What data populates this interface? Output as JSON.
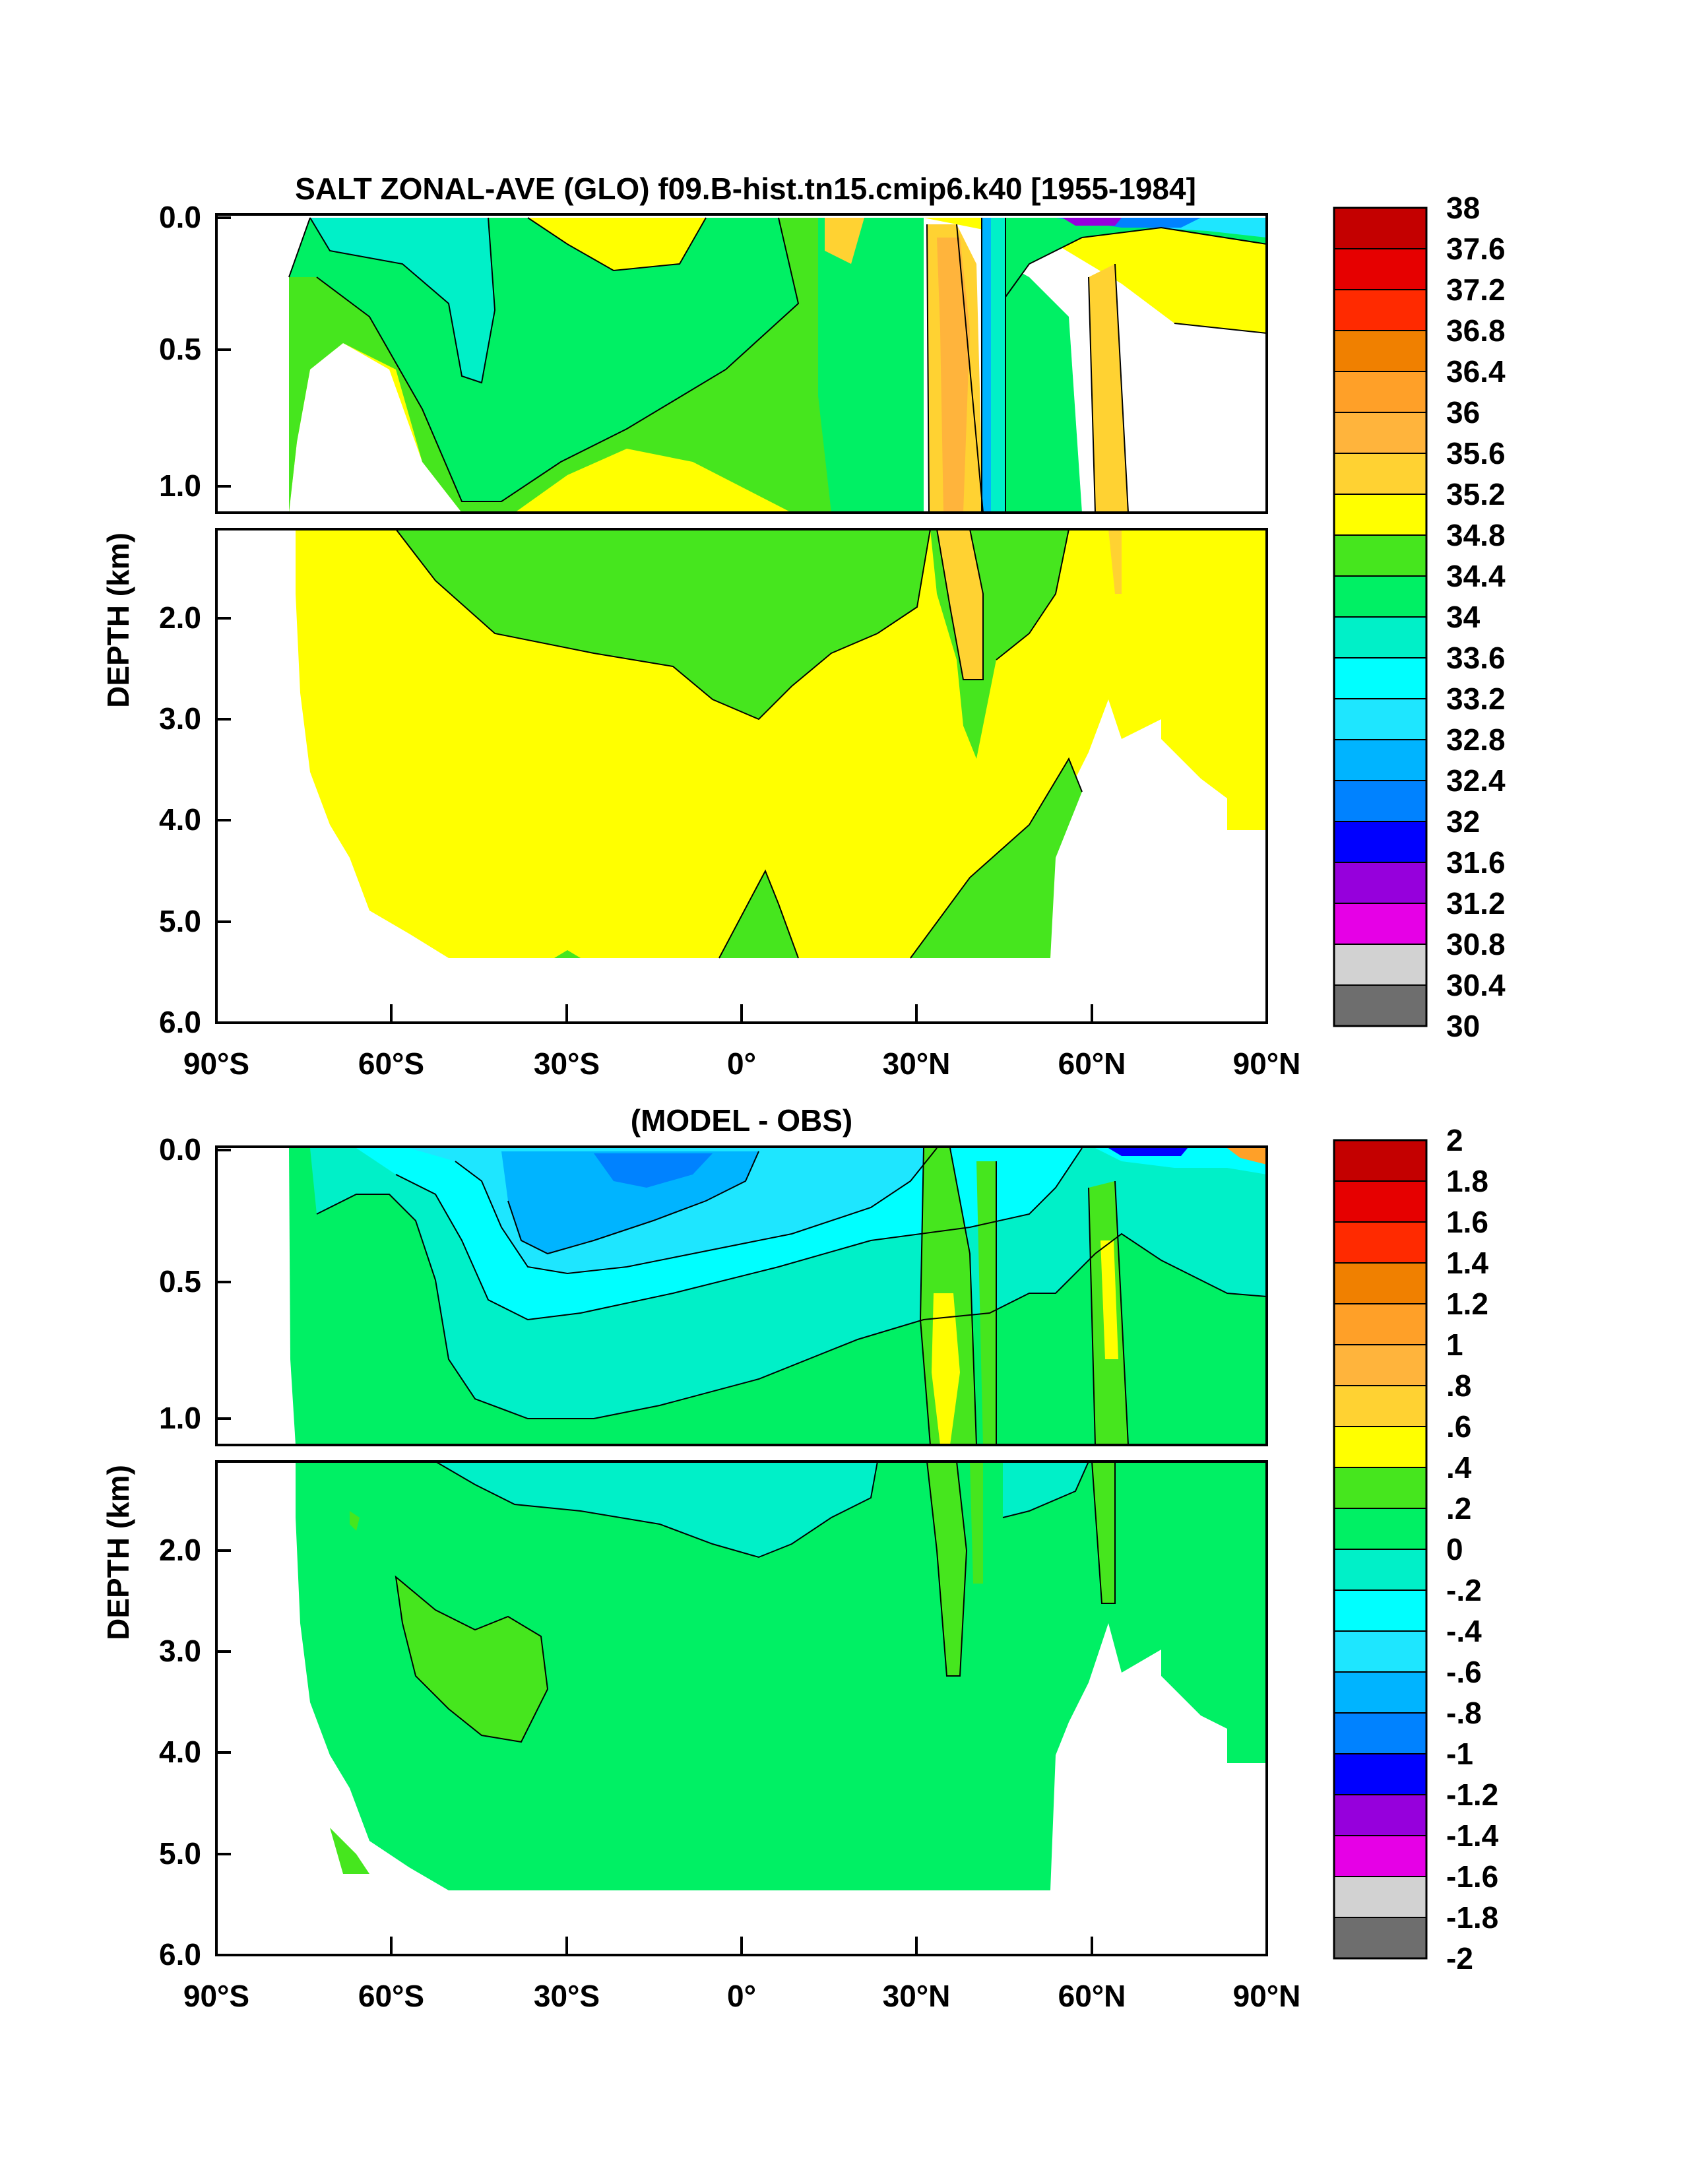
{
  "chart_data": [
    {
      "type": "heatmap",
      "title": "SALT ZONAL-AVE (GLO) f09.B-hist.tn15.cmip6.k40 [1955-1984]",
      "xlabel": "",
      "ylabel": "DEPTH (km)",
      "x_ticks": [
        "90°S",
        "60°S",
        "30°S",
        "0°",
        "30°N",
        "60°N",
        "90°N"
      ],
      "y_ticks_upper": [
        "0.0",
        "0.5",
        "1.0"
      ],
      "y_ticks_lower": [
        "2.0",
        "3.0",
        "4.0",
        "5.0",
        "6.0"
      ],
      "xlim": [
        -90,
        90
      ],
      "ylim_km": [
        0,
        6
      ],
      "colorbar_labels": [
        "38",
        "37.6",
        "37.2",
        "36.8",
        "36.4",
        "36",
        "35.6",
        "35.2",
        "34.8",
        "34.4",
        "34",
        "33.6",
        "33.2",
        "32.8",
        "32.4",
        "32",
        "31.6",
        "31.2",
        "30.8",
        "30.4",
        "30"
      ],
      "colorbar_colors": [
        "#c40000",
        "#e60000",
        "#ff2a00",
        "#f08000",
        "#ffa028",
        "#ffb43c",
        "#ffd232",
        "#ffff00",
        "#46e61e",
        "#00f064",
        "#00f0c8",
        "#00ffff",
        "#1ee6ff",
        "#00b4ff",
        "#0082ff",
        "#0000ff",
        "#9600dc",
        "#e600e6",
        "#d2d2d2",
        "#6e6e6e"
      ],
      "dominant_field": "34.8-35.2 (yellow) in deep ocean; 34.4-34.8 (green) intermediate water"
    },
    {
      "type": "heatmap",
      "title": "(MODEL - OBS)",
      "xlabel": "",
      "ylabel": "DEPTH (km)",
      "x_ticks": [
        "90°S",
        "60°S",
        "30°S",
        "0°",
        "30°N",
        "60°N",
        "90°N"
      ],
      "y_ticks_upper": [
        "0.0",
        "0.5",
        "1.0"
      ],
      "y_ticks_lower": [
        "2.0",
        "3.0",
        "4.0",
        "5.0",
        "6.0"
      ],
      "xlim": [
        -90,
        90
      ],
      "ylim_km": [
        0,
        6
      ],
      "colorbar_labels": [
        "2",
        "1.8",
        "1.6",
        "1.4",
        "1.2",
        "1",
        ".8",
        ".6",
        ".4",
        ".2",
        "0",
        "-.2",
        "-.4",
        "-.6",
        "-.8",
        "-1",
        "-1.2",
        "-1.4",
        "-1.6",
        "-1.8",
        "-2"
      ],
      "colorbar_colors": [
        "#c40000",
        "#e60000",
        "#ff2a00",
        "#f08000",
        "#ffa028",
        "#ffb43c",
        "#ffd232",
        "#ffff00",
        "#46e61e",
        "#00f064",
        "#00f0c8",
        "#00ffff",
        "#1ee6ff",
        "#00b4ff",
        "#0082ff",
        "#0000ff",
        "#9600dc",
        "#e600e6",
        "#d2d2d2",
        "#6e6e6e"
      ],
      "dominant_field": "0 to 0.2 (green) in deep ocean; -0.2 to -0.8 (cyan/blue) fresh bias in upper Southern Hemisphere"
    }
  ]
}
